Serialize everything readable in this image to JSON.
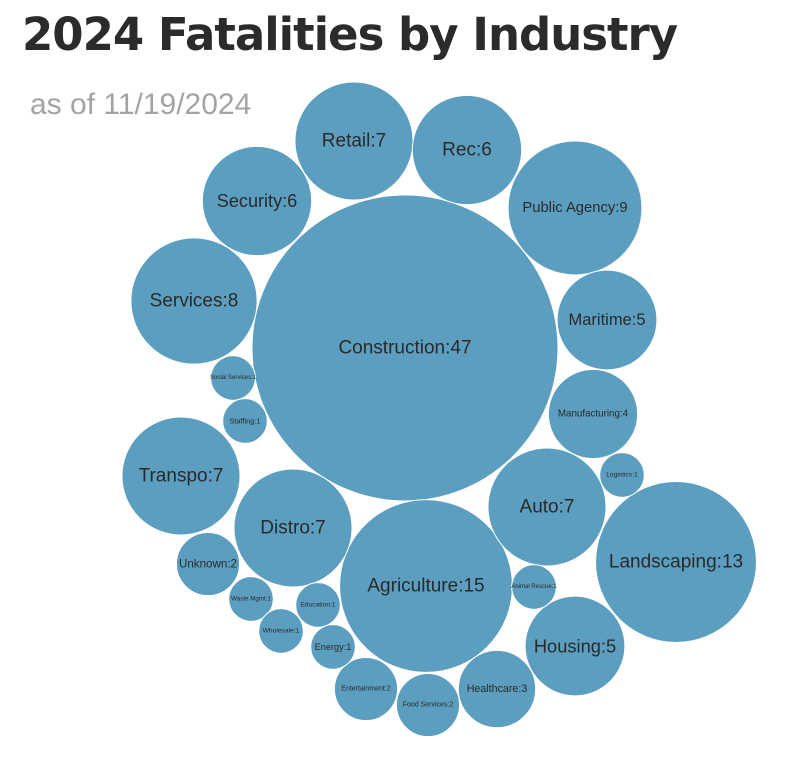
{
  "title": "2024 Fatalities by Industry",
  "subtitle": "as of 11/19/2024",
  "colors": {
    "bubble": "#5c9ebf",
    "bubble_stroke": "#ffffff",
    "label": "#2a2a2a"
  },
  "chart_data": {
    "type": "bubble",
    "title": "2024 Fatalities by Industry",
    "subtitle": "as of 11/19/2024",
    "bubbles": [
      {
        "label": "Construction",
        "value": 47
      },
      {
        "label": "Agriculture",
        "value": 15
      },
      {
        "label": "Landscaping",
        "value": 13
      },
      {
        "label": "Public Agency",
        "value": 9
      },
      {
        "label": "Services",
        "value": 8
      },
      {
        "label": "Retail",
        "value": 7
      },
      {
        "label": "Transpo",
        "value": 7
      },
      {
        "label": "Distro",
        "value": 7
      },
      {
        "label": "Auto",
        "value": 7
      },
      {
        "label": "Rec",
        "value": 6
      },
      {
        "label": "Security",
        "value": 6
      },
      {
        "label": "Maritime",
        "value": 5
      },
      {
        "label": "Housing",
        "value": 5
      },
      {
        "label": "Manufacturing",
        "value": 4
      },
      {
        "label": "Healthcare",
        "value": 3
      },
      {
        "label": "Unknown",
        "value": 2
      },
      {
        "label": "Entertainment",
        "value": 2
      },
      {
        "label": "Food Services",
        "value": 2
      },
      {
        "label": "Social Services",
        "value": 1
      },
      {
        "label": "Staffing",
        "value": 1
      },
      {
        "label": "Logistics",
        "value": 1
      },
      {
        "label": "Waste Mgmt",
        "value": 1
      },
      {
        "label": "Education",
        "value": 1
      },
      {
        "label": "Wholesale",
        "value": 1
      },
      {
        "label": "Energy",
        "value": 1
      },
      {
        "label": "Animal Rescue",
        "value": 1
      }
    ]
  }
}
